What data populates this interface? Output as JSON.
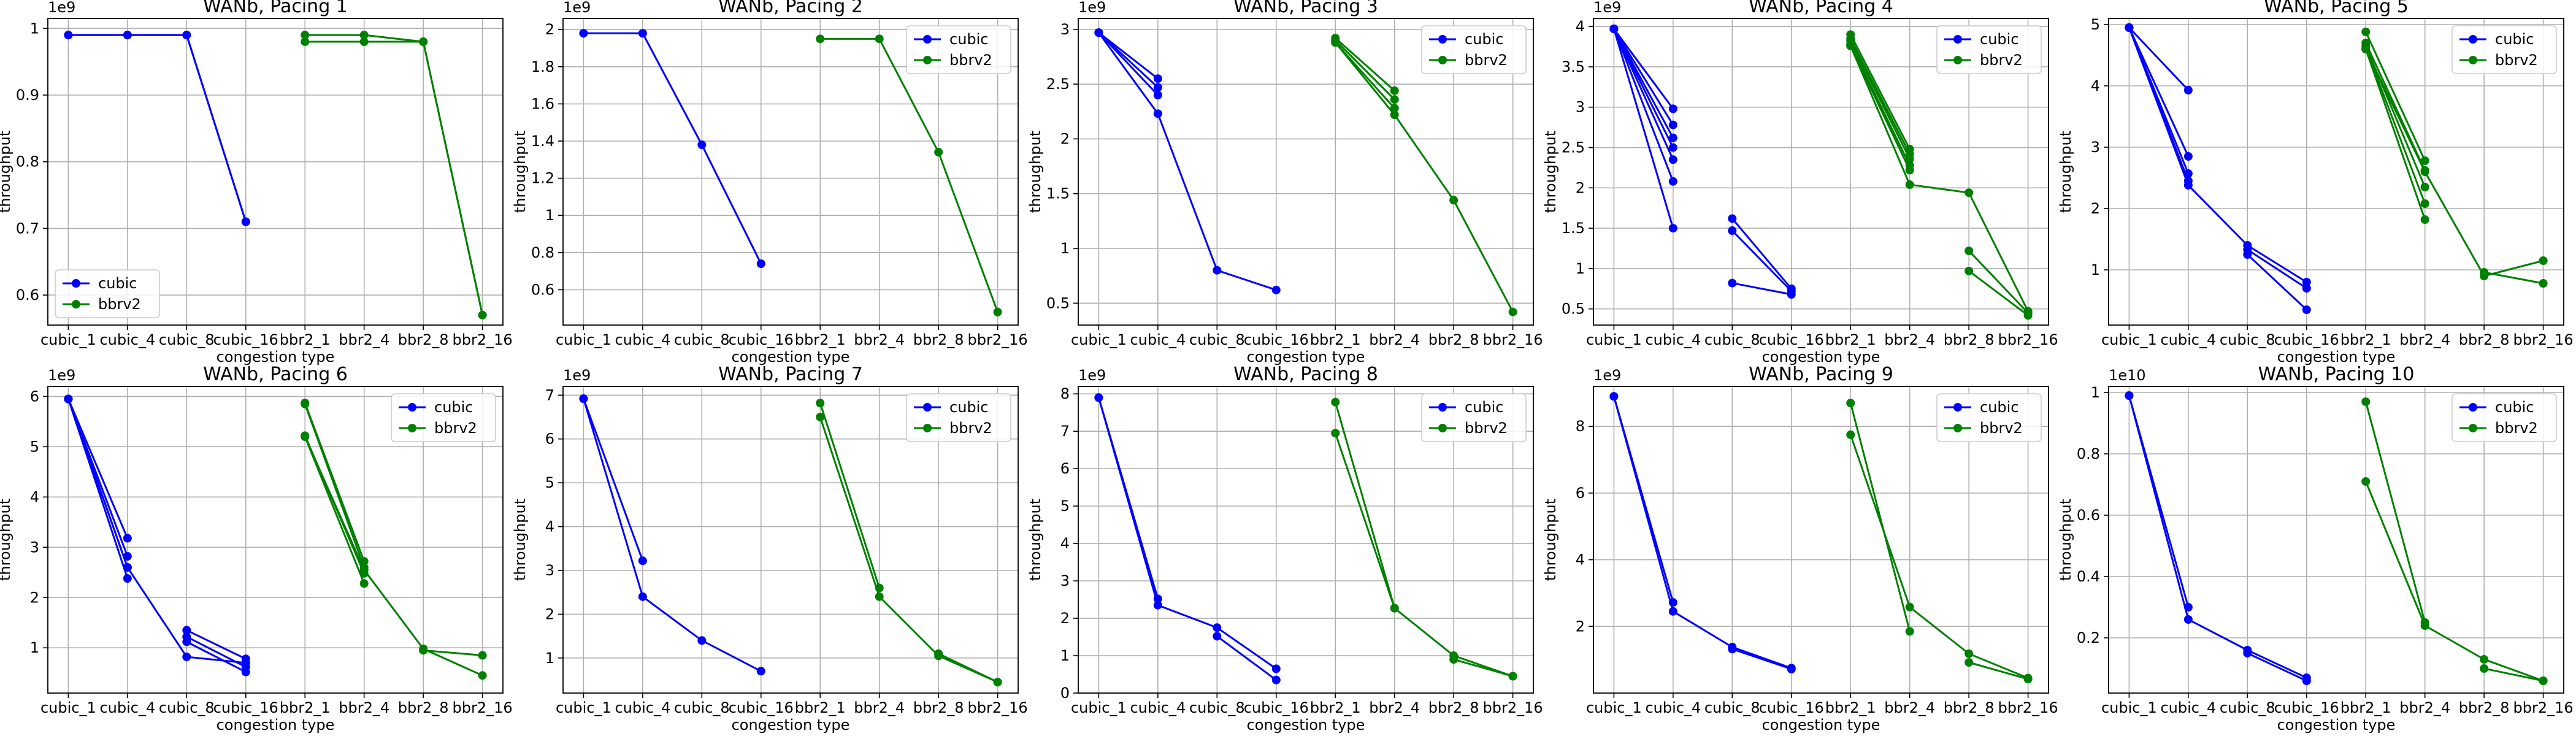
{
  "figure_colors": {
    "cubic": "#0000ff",
    "bbrv2": "#008000",
    "grid": "#b0b0b0"
  },
  "chart_data": [
    {
      "type": "line",
      "title": "WANb, Pacing 1",
      "xlabel": "congestion type",
      "ylabel": "throughput",
      "scale_label": "1e9",
      "scale": 1000000000.0,
      "categories": [
        "cubic_1",
        "cubic_4",
        "cubic_8",
        "cubic_16",
        "bbr2_1",
        "bbr2_4",
        "bbr2_8",
        "bbr2_16"
      ],
      "ylim": [
        0.555,
        1.015
      ],
      "yticks": [
        0.6,
        0.7,
        0.8,
        0.9,
        1.0
      ],
      "legend": "lower left",
      "grid": true,
      "series": [
        {
          "name": "cubic",
          "color": "#0000ff",
          "lines": [
            [
              0.99,
              0.99,
              0.99,
              0.71
            ],
            [
              0.99,
              0.99,
              0.99,
              0.71
            ]
          ]
        },
        {
          "name": "bbrv2",
          "color": "#008000",
          "lines": [
            [
              0.99,
              0.99,
              0.98,
              0.57
            ],
            [
              0.98,
              0.98,
              0.98,
              0.57
            ]
          ]
        }
      ]
    },
    {
      "type": "line",
      "title": "WANb, Pacing 2",
      "xlabel": "congestion type",
      "ylabel": "throughput",
      "scale_label": "1e9",
      "scale": 1000000000.0,
      "categories": [
        "cubic_1",
        "cubic_4",
        "cubic_8",
        "cubic_16",
        "bbr2_1",
        "bbr2_4",
        "bbr2_8",
        "bbr2_16"
      ],
      "ylim": [
        0.41,
        2.06
      ],
      "yticks": [
        0.6,
        0.8,
        1.0,
        1.2,
        1.4,
        1.6,
        1.8,
        2.0
      ],
      "legend": "upper right",
      "grid": true,
      "series": [
        {
          "name": "cubic",
          "color": "#0000ff",
          "lines": [
            [
              1.98,
              1.98,
              1.38,
              0.74
            ]
          ]
        },
        {
          "name": "bbrv2",
          "color": "#008000",
          "lines": [
            [
              1.95,
              1.95,
              1.34,
              0.48
            ]
          ]
        }
      ]
    },
    {
      "type": "line",
      "title": "WANb, Pacing 3",
      "xlabel": "congestion type",
      "ylabel": "throughput",
      "scale_label": "1e9",
      "scale": 1000000000.0,
      "categories": [
        "cubic_1",
        "cubic_4",
        "cubic_8",
        "cubic_16",
        "bbr2_1",
        "bbr2_4",
        "bbr2_8",
        "bbr2_16"
      ],
      "ylim": [
        0.3,
        3.1
      ],
      "yticks": [
        0.5,
        1.0,
        1.5,
        2.0,
        2.5,
        3.0
      ],
      "legend": "upper right",
      "grid": true,
      "series": [
        {
          "name": "cubic",
          "color": "#0000ff",
          "lines": [
            [
              2.97,
              2.55
            ],
            [
              2.97,
              2.47
            ],
            [
              2.97,
              2.4
            ],
            [
              2.97,
              2.23,
              0.8,
              0.62
            ]
          ]
        },
        {
          "name": "bbrv2",
          "color": "#008000",
          "lines": [
            [
              2.92,
              2.44
            ],
            [
              2.9,
              2.36
            ],
            [
              2.88,
              2.28
            ],
            [
              2.88,
              2.22,
              1.44,
              0.42
            ]
          ]
        }
      ]
    },
    {
      "type": "line",
      "title": "WANb, Pacing 4",
      "xlabel": "congestion type",
      "ylabel": "throughput",
      "scale_label": "1e9",
      "scale": 1000000000.0,
      "categories": [
        "cubic_1",
        "cubic_4",
        "cubic_8",
        "cubic_16",
        "bbr2_1",
        "bbr2_4",
        "bbr2_8",
        "bbr2_16"
      ],
      "ylim": [
        0.3,
        4.1
      ],
      "yticks": [
        0.5,
        1.0,
        1.5,
        2.0,
        2.5,
        3.0,
        3.5,
        4.0
      ],
      "legend": "upper right",
      "grid": true,
      "series": [
        {
          "name": "cubic",
          "color": "#0000ff",
          "lines": [
            [
              3.97,
              2.98
            ],
            [
              3.97,
              2.78
            ],
            [
              3.97,
              2.62
            ],
            [
              3.97,
              2.5
            ],
            [
              3.97,
              2.35
            ],
            [
              3.97,
              2.08
            ],
            [
              3.97,
              1.5
            ],
            [
              1.62,
              0.75
            ],
            [
              1.47,
              0.72
            ],
            [
              0.82,
              0.68
            ]
          ]
        },
        {
          "name": "bbrv2",
          "color": "#008000",
          "lines": [
            [
              3.9,
              2.48
            ],
            [
              3.85,
              2.42
            ],
            [
              3.82,
              2.36
            ],
            [
              3.78,
              2.28
            ],
            [
              3.76,
              2.22
            ],
            [
              3.76,
              2.04,
              1.94,
              0.47
            ],
            [
              1.22,
              0.45
            ],
            [
              0.97,
              0.42
            ]
          ]
        }
      ]
    },
    {
      "type": "line",
      "title": "WANb, Pacing 5",
      "xlabel": "congestion type",
      "ylabel": "throughput",
      "scale_label": "",
      "scale": 1000000000.0,
      "categories": [
        "cubic_1",
        "cubic_4",
        "cubic_8",
        "cubic_16",
        "bbr2_1",
        "bbr2_4",
        "bbr2_8",
        "bbr2_16"
      ],
      "ylim": [
        0.1,
        5.1
      ],
      "yticks": [
        1,
        2,
        3,
        4,
        5
      ],
      "legend": "upper right",
      "grid": true,
      "series": [
        {
          "name": "cubic",
          "color": "#0000ff",
          "lines": [
            [
              4.95,
              3.93
            ],
            [
              4.95,
              2.85
            ],
            [
              4.95,
              2.57
            ],
            [
              4.95,
              2.45
            ],
            [
              4.95,
              2.38,
              1.4,
              0.8
            ],
            [
              1.33,
              0.7
            ],
            [
              1.25,
              0.35
            ]
          ]
        },
        {
          "name": "bbrv2",
          "color": "#008000",
          "lines": [
            [
              4.88,
              2.78
            ],
            [
              4.7,
              2.62
            ],
            [
              4.65,
              2.35
            ],
            [
              4.62,
              2.08
            ],
            [
              4.6,
              1.82
            ],
            [
              4.6,
              2.6,
              0.9,
              1.15
            ],
            [
              0.96,
              0.78
            ]
          ]
        }
      ]
    },
    {
      "type": "line",
      "title": "WANb, Pacing 6",
      "xlabel": "congestion type",
      "ylabel": "throughput",
      "scale_label": "1e9",
      "scale": 1000000000.0,
      "categories": [
        "cubic_1",
        "cubic_4",
        "cubic_8",
        "cubic_16",
        "bbr2_1",
        "bbr2_4",
        "bbr2_8",
        "bbr2_16"
      ],
      "ylim": [
        0.1,
        6.2
      ],
      "yticks": [
        1,
        2,
        3,
        4,
        5,
        6
      ],
      "legend": "upper right",
      "grid": true,
      "series": [
        {
          "name": "cubic",
          "color": "#0000ff",
          "lines": [
            [
              5.95,
              3.18
            ],
            [
              5.95,
              2.82
            ],
            [
              5.95,
              2.6
            ],
            [
              5.95,
              2.38
            ],
            [
              5.95,
              2.6,
              0.82,
              0.7
            ],
            [
              1.35,
              0.78
            ],
            [
              1.22,
              0.62
            ],
            [
              1.12,
              0.52
            ]
          ]
        },
        {
          "name": "bbrv2",
          "color": "#008000",
          "lines": [
            [
              5.87,
              2.72
            ],
            [
              5.85,
              2.6
            ],
            [
              5.22,
              2.48
            ],
            [
              5.2,
              2.28
            ],
            [
              5.2,
              2.55,
              0.98,
              0.45
            ],
            [
              0.95,
              0.85
            ]
          ]
        }
      ]
    },
    {
      "type": "line",
      "title": "WANb, Pacing 7",
      "xlabel": "congestion type",
      "ylabel": "throughput",
      "scale_label": "1e9",
      "scale": 1000000000.0,
      "categories": [
        "cubic_1",
        "cubic_4",
        "cubic_8",
        "cubic_16",
        "bbr2_1",
        "bbr2_4",
        "bbr2_8",
        "bbr2_16"
      ],
      "ylim": [
        0.2,
        7.2
      ],
      "yticks": [
        1,
        2,
        3,
        4,
        5,
        6,
        7
      ],
      "legend": "upper right",
      "grid": true,
      "series": [
        {
          "name": "cubic",
          "color": "#0000ff",
          "lines": [
            [
              6.92,
              3.22
            ],
            [
              6.92,
              2.4,
              1.4,
              0.7
            ]
          ]
        },
        {
          "name": "bbrv2",
          "color": "#008000",
          "lines": [
            [
              6.82,
              2.6
            ],
            [
              6.5,
              2.4,
              1.05,
              0.45
            ],
            [
              1.1,
              0.45
            ]
          ]
        }
      ]
    },
    {
      "type": "line",
      "title": "WANb, Pacing 8",
      "xlabel": "congestion type",
      "ylabel": "throughput",
      "scale_label": "1e9",
      "scale": 1000000000.0,
      "categories": [
        "cubic_1",
        "cubic_4",
        "cubic_8",
        "cubic_16",
        "bbr2_1",
        "bbr2_4",
        "bbr2_8",
        "bbr2_16"
      ],
      "ylim": [
        0,
        8.2
      ],
      "yticks": [
        0,
        1,
        2,
        3,
        4,
        5,
        6,
        7,
        8
      ],
      "legend": "upper right",
      "grid": true,
      "series": [
        {
          "name": "cubic",
          "color": "#0000ff",
          "lines": [
            [
              7.9,
              2.52
            ],
            [
              7.9,
              2.35,
              1.75,
              0.65
            ],
            [
              1.52,
              0.35
            ]
          ]
        },
        {
          "name": "bbrv2",
          "color": "#008000",
          "lines": [
            [
              7.78,
              2.27
            ],
            [
              6.95,
              2.27,
              1.0,
              0.45
            ],
            [
              0.9,
              0.45
            ]
          ]
        }
      ]
    },
    {
      "type": "line",
      "title": "WANb, Pacing 9",
      "xlabel": "congestion type",
      "ylabel": "throughput",
      "scale_label": "1e9",
      "scale": 1000000000.0,
      "categories": [
        "cubic_1",
        "cubic_4",
        "cubic_8",
        "cubic_16",
        "bbr2_1",
        "bbr2_4",
        "bbr2_8",
        "bbr2_16"
      ],
      "ylim": [
        0,
        9.2
      ],
      "yticks": [
        2,
        4,
        6,
        8
      ],
      "legend": "upper right",
      "grid": true,
      "series": [
        {
          "name": "cubic",
          "color": "#0000ff",
          "lines": [
            [
              8.9,
              2.72
            ],
            [
              8.9,
              2.45,
              1.38,
              0.75
            ],
            [
              1.32,
              0.72
            ]
          ]
        },
        {
          "name": "bbrv2",
          "color": "#008000",
          "lines": [
            [
              8.7,
              1.85
            ],
            [
              7.75,
              2.58,
              1.18,
              0.45
            ],
            [
              0.92,
              0.42
            ]
          ]
        }
      ]
    },
    {
      "type": "line",
      "title": "WANb, Pacing 10",
      "xlabel": "congestion type",
      "ylabel": "throughput",
      "scale_label": "1e10",
      "scale": 10000000000.0,
      "categories": [
        "cubic_1",
        "cubic_4",
        "cubic_8",
        "cubic_16",
        "bbr2_1",
        "bbr2_4",
        "bbr2_8",
        "bbr2_16"
      ],
      "ylim": [
        0.02,
        1.02
      ],
      "yticks": [
        0.2,
        0.4,
        0.6,
        0.8,
        1.0
      ],
      "legend": "upper right",
      "grid": true,
      "series": [
        {
          "name": "cubic",
          "color": "#0000ff",
          "lines": [
            [
              0.99,
              0.3
            ],
            [
              0.99,
              0.26,
              0.16,
              0.07
            ],
            [
              0.15,
              0.06
            ]
          ]
        },
        {
          "name": "bbrv2",
          "color": "#008000",
          "lines": [
            [
              0.97,
              0.25
            ],
            [
              0.71,
              0.24,
              0.13,
              0.06
            ],
            [
              0.1,
              0.06
            ]
          ]
        }
      ]
    }
  ]
}
